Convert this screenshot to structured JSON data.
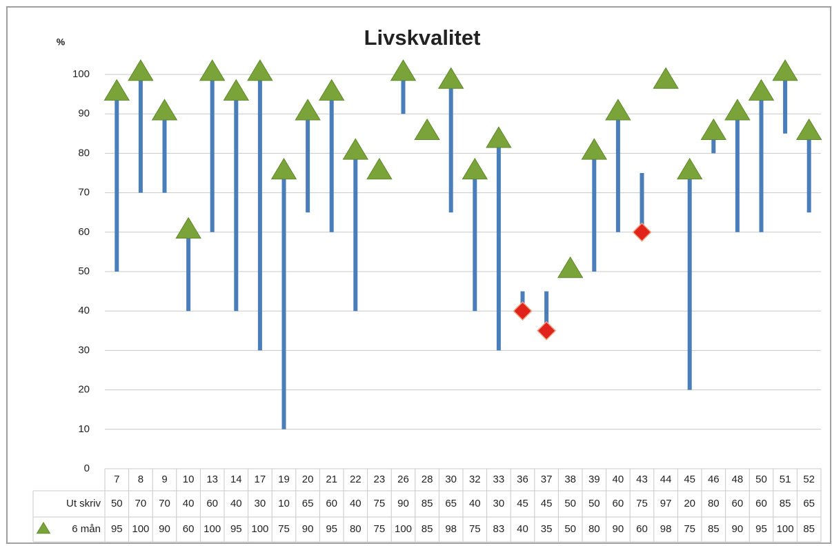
{
  "chart_data": {
    "type": "line",
    "title": "Livskvalitet",
    "y_label": "%",
    "categories": [
      "7",
      "8",
      "9",
      "10",
      "13",
      "14",
      "17",
      "19",
      "20",
      "21",
      "22",
      "23",
      "26",
      "28",
      "30",
      "32",
      "33",
      "36",
      "37",
      "38",
      "39",
      "40",
      "43",
      "44",
      "45",
      "46",
      "48",
      "50",
      "51",
      "52"
    ],
    "series": [
      {
        "name": "Ut skriv",
        "color": "#4a7ebb",
        "values": [
          50,
          70,
          70,
          40,
          60,
          40,
          30,
          10,
          65,
          60,
          40,
          75,
          90,
          85,
          65,
          40,
          30,
          45,
          45,
          50,
          50,
          60,
          75,
          97,
          20,
          80,
          60,
          60,
          85,
          65
        ]
      },
      {
        "name": "6 mån",
        "color": "#7aa33a",
        "decline_color": "#e0231b",
        "values": [
          95,
          100,
          90,
          60,
          100,
          95,
          100,
          75,
          90,
          95,
          80,
          75,
          100,
          85,
          98,
          75,
          83,
          40,
          35,
          50,
          80,
          90,
          60,
          98,
          75,
          85,
          90,
          95,
          100,
          85
        ]
      }
    ],
    "ylim": [
      0,
      100
    ],
    "yticks": [
      0,
      10,
      20,
      30,
      40,
      50,
      60,
      70,
      80,
      90,
      100
    ],
    "grid": true
  }
}
